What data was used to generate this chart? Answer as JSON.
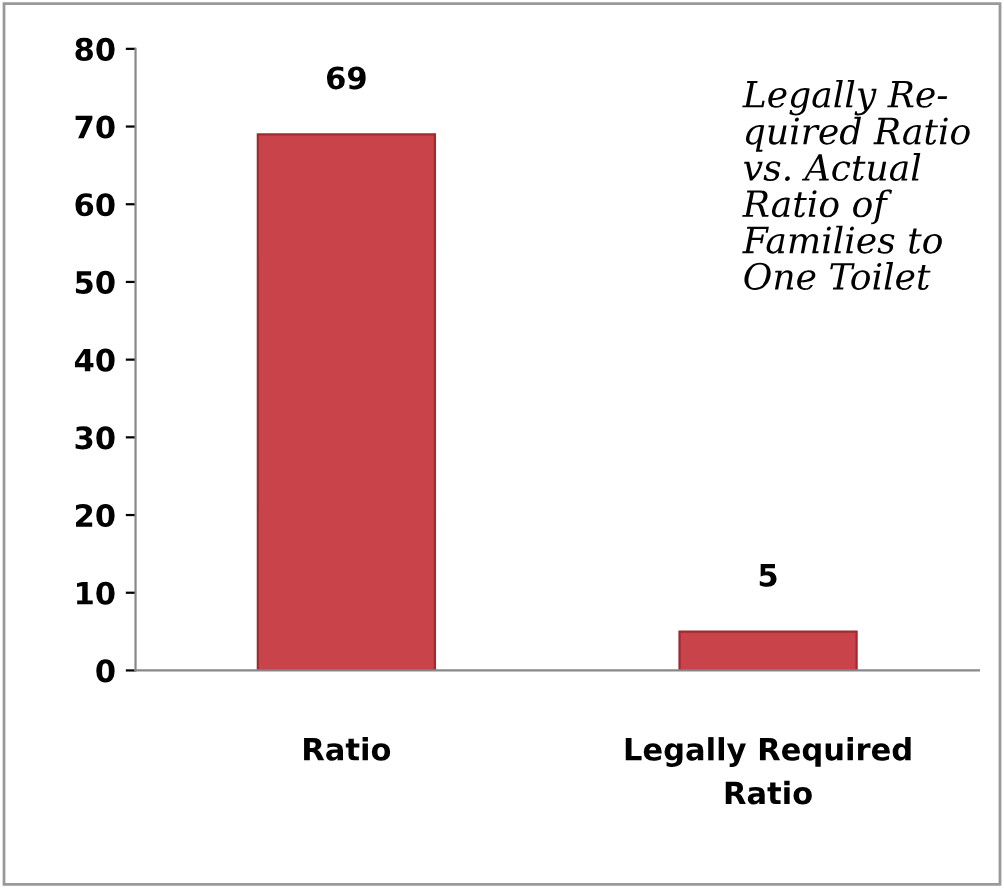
{
  "chart_data": {
    "type": "bar",
    "title": "Legally Re-\nquired Ratio\nvs. Actual\nRatio of\nFamilies to\nOne Toilet",
    "categories": [
      "Ratio",
      "Legally Required\nRatio"
    ],
    "values": [
      69,
      5
    ],
    "color": "#c9434a",
    "ylim": [
      0,
      80
    ],
    "yticks": [
      0,
      10,
      20,
      30,
      40,
      50,
      60,
      70,
      80
    ],
    "data_labels": true,
    "grid": false,
    "legend": false
  }
}
